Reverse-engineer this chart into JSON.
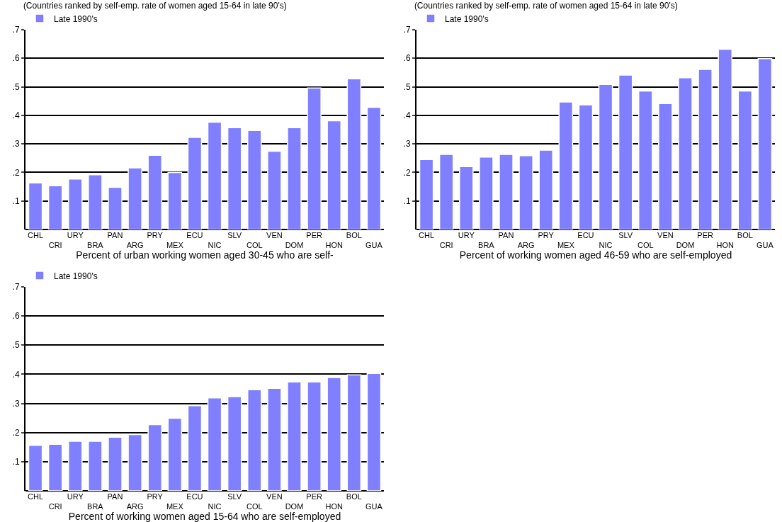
{
  "chart_data": [
    {
      "type": "bar",
      "title": "(Countries ranked by self-emp. rate of women aged 15-64 in late 90's)",
      "xlabel": "Percent of urban working women aged 30-45 who are self-",
      "categories": [
        "CHL",
        "CRI",
        "URY",
        "BRA",
        "PAN",
        "ARG",
        "PRY",
        "MEX",
        "ECU",
        "NIC",
        "SLV",
        "COL",
        "VEN",
        "DOM",
        "PER",
        "HON",
        "BOL",
        "GUA"
      ],
      "series": [
        {
          "name": "Late 1990's",
          "color": "#8080ff",
          "values": [
            0.163,
            0.153,
            0.177,
            0.192,
            0.148,
            0.216,
            0.26,
            0.2,
            0.323,
            0.376,
            0.357,
            0.347,
            0.274,
            0.357,
            0.496,
            0.381,
            0.528,
            0.428
          ]
        }
      ],
      "ylim": [
        0,
        0.7
      ],
      "yticks": [
        {
          "value": 0.1,
          "label": ".1"
        },
        {
          "value": 0.2,
          "label": ".2"
        },
        {
          "value": 0.3,
          "label": ".3"
        },
        {
          "value": 0.4,
          "label": ".4"
        },
        {
          "value": 0.5,
          "label": ".5"
        },
        {
          "value": 0.6,
          "label": ".6"
        },
        {
          "value": 0.7,
          "label": ".7"
        }
      ],
      "grid": "y",
      "legend": "top left"
    },
    {
      "type": "bar",
      "title": "(Countries ranked by self-emp. rate of women aged 15-64 in late 90's)",
      "xlabel": "Percent of working women aged 46-59 who are self-employed",
      "categories": [
        "CHL",
        "CRI",
        "URY",
        "BRA",
        "PAN",
        "ARG",
        "PRY",
        "MEX",
        "ECU",
        "NIC",
        "SLV",
        "COL",
        "VEN",
        "DOM",
        "PER",
        "HON",
        "BOL",
        "GUA"
      ],
      "series": [
        {
          "name": "Late 1990's",
          "color": "#8080ff",
          "values": [
            0.245,
            0.263,
            0.22,
            0.254,
            0.263,
            0.259,
            0.278,
            0.447,
            0.437,
            0.508,
            0.541,
            0.485,
            0.441,
            0.532,
            0.561,
            0.632,
            0.485,
            0.599
          ]
        }
      ],
      "ylim": [
        0,
        0.7
      ],
      "yticks": [
        {
          "value": 0.1,
          "label": ".1"
        },
        {
          "value": 0.2,
          "label": ".2"
        },
        {
          "value": 0.3,
          "label": ".3"
        },
        {
          "value": 0.4,
          "label": ".4"
        },
        {
          "value": 0.5,
          "label": ".5"
        },
        {
          "value": 0.6,
          "label": ".6"
        },
        {
          "value": 0.7,
          "label": ".7"
        }
      ],
      "grid": "y",
      "legend": "top left"
    },
    {
      "type": "bar",
      "xlabel": "Percent of working women aged 15-64 who are self-employed",
      "categories": [
        "CHL",
        "CRI",
        "URY",
        "BRA",
        "PAN",
        "ARG",
        "PRY",
        "MEX",
        "ECU",
        "NIC",
        "SLV",
        "COL",
        "VEN",
        "DOM",
        "PER",
        "HON",
        "BOL",
        "GUA"
      ],
      "series": [
        {
          "name": "Late 1990's",
          "color": "#8080ff",
          "values": [
            0.156,
            0.16,
            0.17,
            0.17,
            0.184,
            0.193,
            0.227,
            0.249,
            0.292,
            0.319,
            0.323,
            0.347,
            0.352,
            0.374,
            0.374,
            0.389,
            0.398,
            0.403
          ]
        }
      ],
      "ylim": [
        0,
        0.7
      ],
      "yticks": [
        {
          "value": 0.1,
          "label": ".1"
        },
        {
          "value": 0.2,
          "label": ".2"
        },
        {
          "value": 0.3,
          "label": ".3"
        },
        {
          "value": 0.4,
          "label": ".4"
        },
        {
          "value": 0.5,
          "label": ".5"
        },
        {
          "value": 0.6,
          "label": ".6"
        },
        {
          "value": 0.7,
          "label": ".7"
        }
      ],
      "grid": "y",
      "legend": "top left"
    }
  ]
}
